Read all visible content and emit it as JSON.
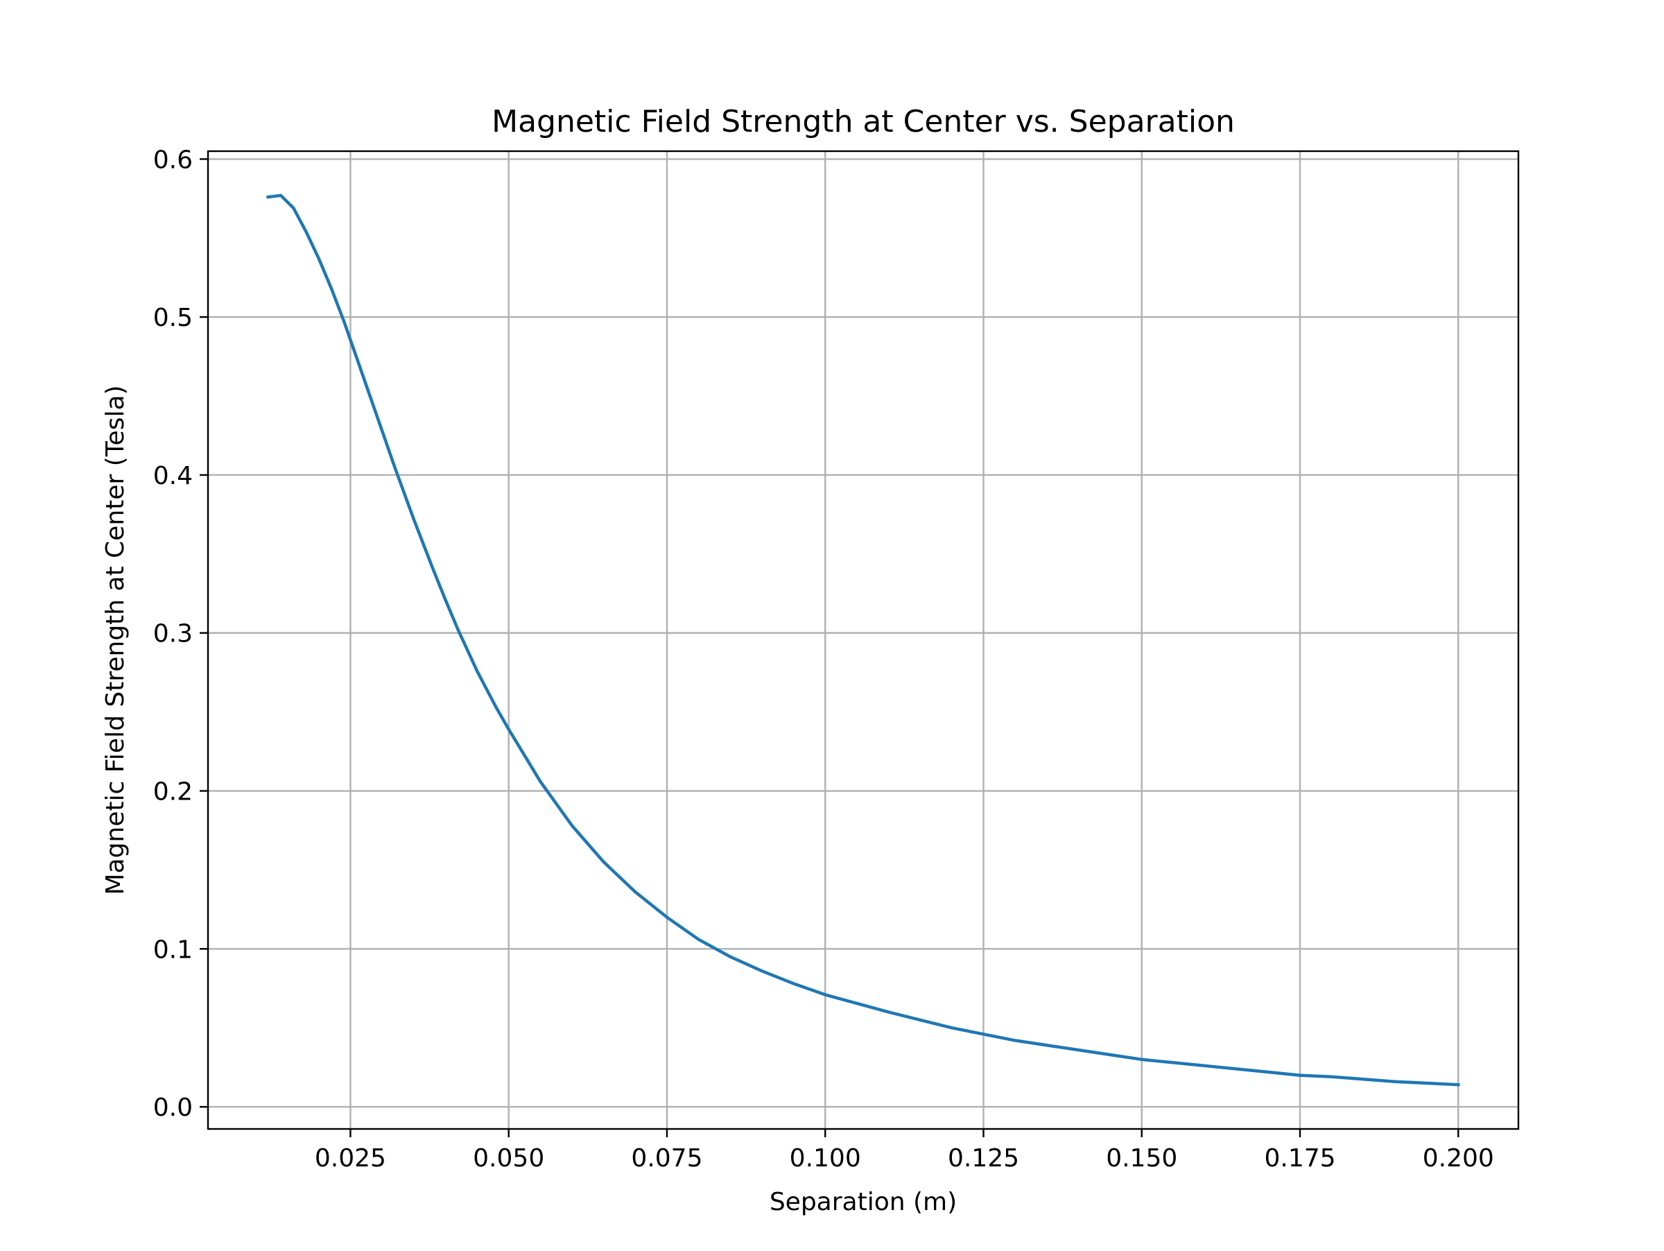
{
  "chart_data": {
    "type": "line",
    "title": "Magnetic Field Strength at Center vs. Separation",
    "xlabel": "Separation (m)",
    "ylabel": "Magnetic Field Strength at Center (Tesla)",
    "xlim": [
      0.0025,
      0.2095
    ],
    "ylim": [
      -0.014,
      0.605
    ],
    "grid": true,
    "legend": "none",
    "x_ticks": [
      {
        "value": 0.025,
        "label": "0.025"
      },
      {
        "value": 0.05,
        "label": "0.050"
      },
      {
        "value": 0.075,
        "label": "0.075"
      },
      {
        "value": 0.1,
        "label": "0.100"
      },
      {
        "value": 0.125,
        "label": "0.125"
      },
      {
        "value": 0.15,
        "label": "0.150"
      },
      {
        "value": 0.175,
        "label": "0.175"
      },
      {
        "value": 0.2,
        "label": "0.200"
      }
    ],
    "y_ticks": [
      {
        "value": 0.0,
        "label": "0.0"
      },
      {
        "value": 0.1,
        "label": "0.1"
      },
      {
        "value": 0.2,
        "label": "0.2"
      },
      {
        "value": 0.3,
        "label": "0.3"
      },
      {
        "value": 0.4,
        "label": "0.4"
      },
      {
        "value": 0.5,
        "label": "0.5"
      },
      {
        "value": 0.6,
        "label": "0.6"
      }
    ],
    "series": [
      {
        "color": "#1f77b4",
        "x": [
          0.012,
          0.014,
          0.016,
          0.018,
          0.02,
          0.022,
          0.024,
          0.026,
          0.028,
          0.03,
          0.032,
          0.035,
          0.038,
          0.04,
          0.042,
          0.045,
          0.048,
          0.05,
          0.055,
          0.06,
          0.065,
          0.07,
          0.075,
          0.08,
          0.085,
          0.09,
          0.095,
          0.1,
          0.11,
          0.12,
          0.125,
          0.13,
          0.14,
          0.15,
          0.16,
          0.17,
          0.175,
          0.18,
          0.19,
          0.2
        ],
        "y": [
          0.576,
          0.577,
          0.569,
          0.554,
          0.537,
          0.518,
          0.497,
          0.474,
          0.451,
          0.428,
          0.405,
          0.372,
          0.341,
          0.321,
          0.302,
          0.276,
          0.253,
          0.239,
          0.206,
          0.178,
          0.155,
          0.136,
          0.12,
          0.106,
          0.095,
          0.086,
          0.078,
          0.071,
          0.06,
          0.05,
          0.046,
          0.042,
          0.036,
          0.03,
          0.026,
          0.022,
          0.02,
          0.019,
          0.016,
          0.014
        ]
      }
    ]
  }
}
